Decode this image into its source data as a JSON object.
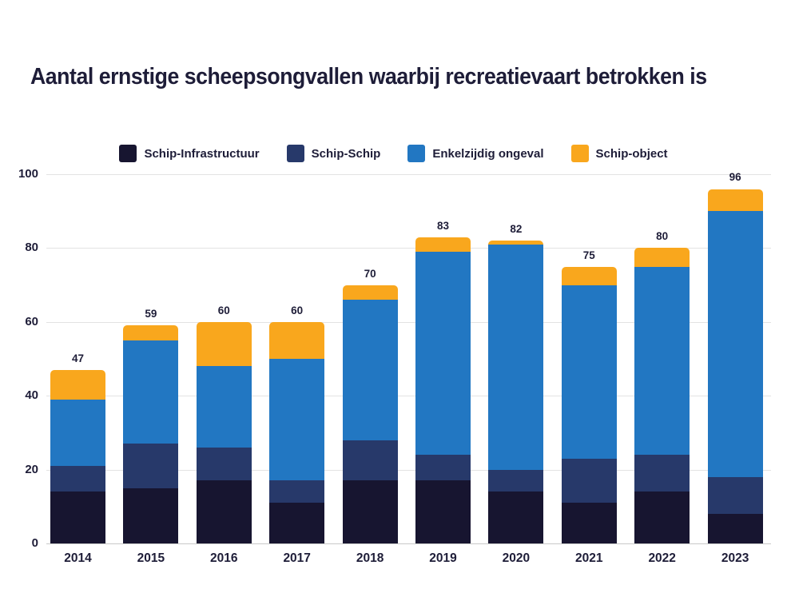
{
  "title": "Aantal ernstige scheepsongvallen waarbij recreatievaart betrokken is",
  "colors": {
    "text": "#1e1d38",
    "gridline": "#e3e3e3",
    "baseline": "#c9c9c9",
    "background": "#ffffff"
  },
  "chart_data": {
    "type": "bar",
    "stacked": true,
    "title": "Aantal ernstige scheepsongvallen waarbij recreatievaart betrokken is",
    "categories": [
      "2014",
      "2015",
      "2016",
      "2017",
      "2018",
      "2019",
      "2020",
      "2021",
      "2022",
      "2023"
    ],
    "series": [
      {
        "name": "Schip-Infrastructuur",
        "color": "#171530",
        "values": [
          14,
          15,
          17,
          11,
          17,
          17,
          14,
          11,
          14,
          8
        ]
      },
      {
        "name": "Schip-Schip",
        "color": "#27396a",
        "values": [
          7,
          12,
          9,
          6,
          11,
          7,
          6,
          12,
          10,
          10
        ]
      },
      {
        "name": "Enkelzijdig ongeval",
        "color": "#2277c2",
        "values": [
          18,
          28,
          22,
          33,
          38,
          55,
          61,
          47,
          51,
          72
        ]
      },
      {
        "name": "Schip-object",
        "color": "#f9a71d",
        "values": [
          8,
          4,
          12,
          10,
          4,
          4,
          1,
          5,
          5,
          6
        ]
      }
    ],
    "totals": [
      47,
      59,
      60,
      60,
      70,
      83,
      82,
      75,
      80,
      96
    ],
    "xlabel": "",
    "ylabel": "",
    "ylim": [
      0,
      100
    ],
    "yticks": [
      0,
      20,
      40,
      60,
      80,
      100
    ],
    "grid": true,
    "legend_position": "top"
  }
}
